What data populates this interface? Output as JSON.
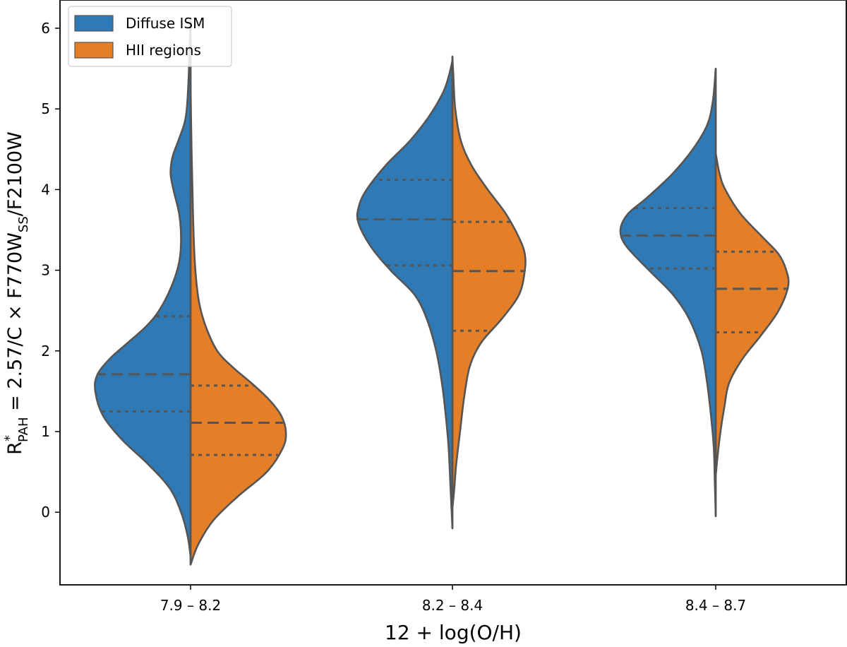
{
  "chart_data": {
    "type": "violin",
    "split": true,
    "categories": [
      "7.9 – 8.2",
      "8.2 – 8.4",
      "8.4 – 8.7"
    ],
    "xlabel": "12 + log(O/H)",
    "ylabel": {
      "prefix": "R",
      "sup": "*",
      "sub": "PAH",
      "middle": " = 2.57/C × F770W",
      "sub2": "SS",
      "suffix": "/F2100W"
    },
    "ylim": [
      -0.9,
      6.35
    ],
    "yticks": [
      0,
      1,
      2,
      3,
      4,
      5,
      6
    ],
    "legend": {
      "location": "top-left"
    },
    "series": [
      {
        "name": "Diffuse ISM",
        "color": "#2f79b4",
        "side": "left",
        "violins": [
          {
            "category": "7.9 – 8.2",
            "range": [
              -0.55,
              6.1
            ],
            "quartiles": [
              1.25,
              1.71,
              2.43
            ],
            "profile": [
              [
                -0.55,
                0
              ],
              [
                -0.3,
                0.03
              ],
              [
                0.0,
                0.1
              ],
              [
                0.3,
                0.22
              ],
              [
                0.6,
                0.45
              ],
              [
                0.9,
                0.72
              ],
              [
                1.2,
                0.92
              ],
              [
                1.5,
                1.0
              ],
              [
                1.7,
                0.98
              ],
              [
                1.9,
                0.85
              ],
              [
                2.1,
                0.66
              ],
              [
                2.3,
                0.47
              ],
              [
                2.5,
                0.33
              ],
              [
                2.8,
                0.2
              ],
              [
                3.1,
                0.12
              ],
              [
                3.4,
                0.1
              ],
              [
                3.7,
                0.12
              ],
              [
                4.0,
                0.18
              ],
              [
                4.2,
                0.21
              ],
              [
                4.4,
                0.19
              ],
              [
                4.6,
                0.13
              ],
              [
                4.8,
                0.07
              ],
              [
                5.0,
                0.04
              ],
              [
                5.4,
                0.02
              ],
              [
                6.1,
                0
              ]
            ]
          },
          {
            "category": "8.2 – 8.4",
            "range": [
              -0.2,
              5.6
            ],
            "quartiles": [
              3.06,
              3.63,
              4.12
            ],
            "profile": [
              [
                -0.2,
                0
              ],
              [
                0.3,
                0.02
              ],
              [
                0.8,
                0.04
              ],
              [
                1.2,
                0.07
              ],
              [
                1.6,
                0.11
              ],
              [
                2.0,
                0.17
              ],
              [
                2.4,
                0.27
              ],
              [
                2.7,
                0.4
              ],
              [
                3.0,
                0.65
              ],
              [
                3.3,
                0.86
              ],
              [
                3.6,
                0.99
              ],
              [
                3.8,
                0.98
              ],
              [
                4.0,
                0.9
              ],
              [
                4.3,
                0.7
              ],
              [
                4.6,
                0.45
              ],
              [
                4.9,
                0.25
              ],
              [
                5.2,
                0.1
              ],
              [
                5.4,
                0.04
              ],
              [
                5.6,
                0
              ]
            ]
          },
          {
            "category": "8.4 – 8.7",
            "range": [
              -0.05,
              5.5
            ],
            "quartiles": [
              3.02,
              3.43,
              3.77
            ],
            "profile": [
              [
                -0.05,
                0
              ],
              [
                0.4,
                0.01
              ],
              [
                0.8,
                0.02
              ],
              [
                1.2,
                0.05
              ],
              [
                1.6,
                0.09
              ],
              [
                2.0,
                0.15
              ],
              [
                2.4,
                0.28
              ],
              [
                2.7,
                0.45
              ],
              [
                3.0,
                0.7
              ],
              [
                3.3,
                0.94
              ],
              [
                3.5,
                1.0
              ],
              [
                3.7,
                0.92
              ],
              [
                3.9,
                0.72
              ],
              [
                4.2,
                0.45
              ],
              [
                4.5,
                0.24
              ],
              [
                4.8,
                0.09
              ],
              [
                5.1,
                0.03
              ],
              [
                5.5,
                0
              ]
            ]
          }
        ]
      },
      {
        "name": "HII regions",
        "color": "#e57f27",
        "side": "right",
        "violins": [
          {
            "category": "7.9 – 8.2",
            "range": [
              -0.65,
              5.3
            ],
            "quartiles": [
              0.71,
              1.11,
              1.57
            ],
            "profile": [
              [
                -0.65,
                0
              ],
              [
                -0.4,
                0.08
              ],
              [
                -0.1,
                0.24
              ],
              [
                0.2,
                0.5
              ],
              [
                0.5,
                0.8
              ],
              [
                0.8,
                0.97
              ],
              [
                1.0,
                1.0
              ],
              [
                1.2,
                0.95
              ],
              [
                1.4,
                0.82
              ],
              [
                1.6,
                0.64
              ],
              [
                1.8,
                0.44
              ],
              [
                2.0,
                0.28
              ],
              [
                2.3,
                0.16
              ],
              [
                2.6,
                0.09
              ],
              [
                3.0,
                0.05
              ],
              [
                3.5,
                0.03
              ],
              [
                4.0,
                0.02
              ],
              [
                4.5,
                0.01
              ],
              [
                5.3,
                0
              ]
            ]
          },
          {
            "category": "8.2 – 8.4",
            "range": [
              0.05,
              5.65
            ],
            "quartiles": [
              2.25,
              2.99,
              3.6
            ],
            "profile": [
              [
                0.05,
                0
              ],
              [
                0.3,
                0.02
              ],
              [
                0.6,
                0.04
              ],
              [
                1.0,
                0.08
              ],
              [
                1.4,
                0.12
              ],
              [
                1.8,
                0.18
              ],
              [
                2.1,
                0.3
              ],
              [
                2.4,
                0.52
              ],
              [
                2.7,
                0.7
              ],
              [
                3.0,
                0.76
              ],
              [
                3.2,
                0.76
              ],
              [
                3.4,
                0.7
              ],
              [
                3.7,
                0.56
              ],
              [
                4.0,
                0.37
              ],
              [
                4.3,
                0.2
              ],
              [
                4.6,
                0.09
              ],
              [
                5.0,
                0.03
              ],
              [
                5.4,
                0.01
              ],
              [
                5.65,
                0
              ]
            ]
          },
          {
            "category": "8.4 – 8.7",
            "range": [
              0.45,
              4.45
            ],
            "quartiles": [
              2.23,
              2.77,
              3.23
            ],
            "profile": [
              [
                0.45,
                0
              ],
              [
                0.7,
                0.02
              ],
              [
                1.0,
                0.05
              ],
              [
                1.3,
                0.09
              ],
              [
                1.6,
                0.14
              ],
              [
                1.9,
                0.28
              ],
              [
                2.2,
                0.48
              ],
              [
                2.5,
                0.66
              ],
              [
                2.8,
                0.76
              ],
              [
                3.0,
                0.74
              ],
              [
                3.2,
                0.66
              ],
              [
                3.4,
                0.5
              ],
              [
                3.7,
                0.26
              ],
              [
                4.0,
                0.1
              ],
              [
                4.2,
                0.04
              ],
              [
                4.45,
                0
              ]
            ]
          }
        ]
      }
    ]
  }
}
